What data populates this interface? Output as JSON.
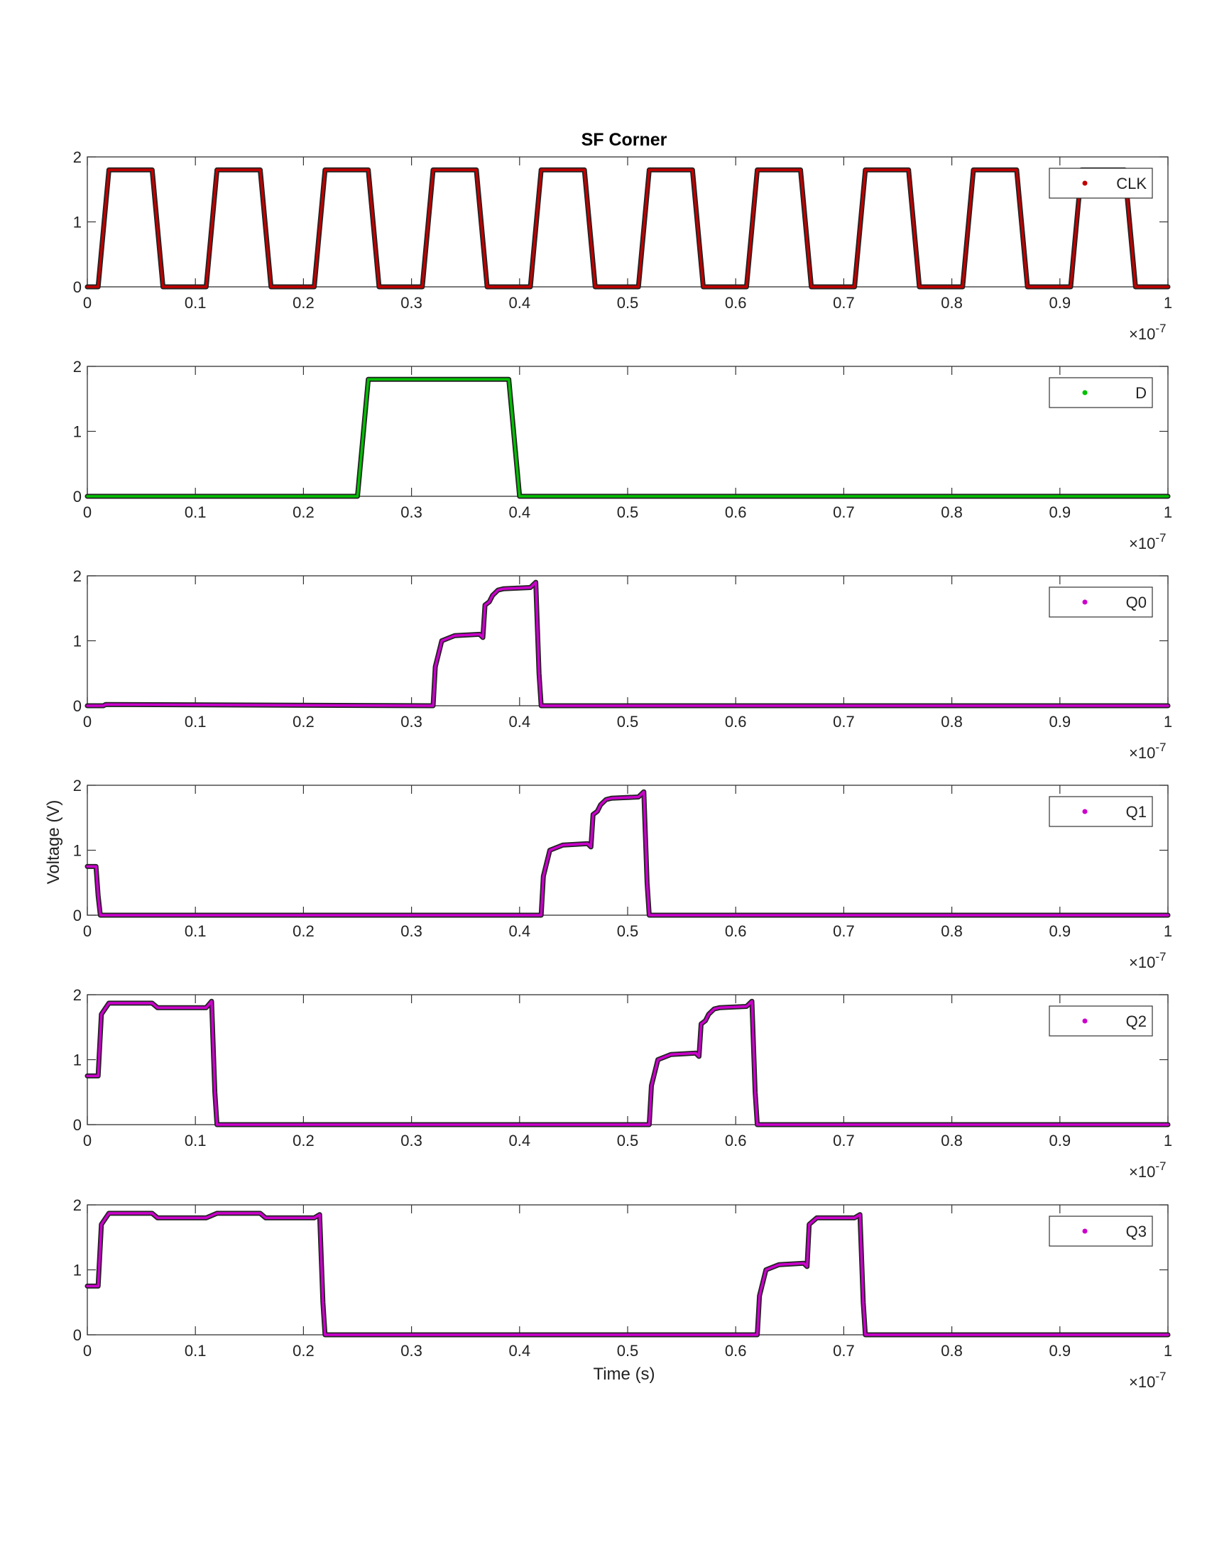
{
  "figure": {
    "title": "SF Corner",
    "ylabel": "Voltage (V)",
    "xlabel": "Time (s)",
    "exponent_base": "×10",
    "exponent_power": "-7"
  },
  "chart_data": [
    {
      "type": "line",
      "title": "SF Corner",
      "xlim": [
        0,
        1
      ],
      "ylim": [
        0,
        2
      ],
      "xticks": [
        "0",
        "0.1",
        "0.2",
        "0.3",
        "0.4",
        "0.5",
        "0.6",
        "0.7",
        "0.8",
        "0.9",
        "1"
      ],
      "yticks": [
        "0",
        "1",
        "2"
      ],
      "x_multiplier": "×10^-7",
      "legend": "top-right",
      "series": [
        {
          "name": "CLK",
          "color": "#c00000",
          "x": [
            0,
            0.01,
            0.02,
            0.06,
            0.07,
            0.11,
            0.12,
            0.16,
            0.17,
            0.21,
            0.22,
            0.26,
            0.27,
            0.31,
            0.32,
            0.36,
            0.37,
            0.41,
            0.42,
            0.46,
            0.47,
            0.51,
            0.52,
            0.56,
            0.57,
            0.61,
            0.62,
            0.66,
            0.67,
            0.71,
            0.72,
            0.76,
            0.77,
            0.81,
            0.82,
            0.86,
            0.87,
            0.91,
            0.92,
            0.96,
            0.97,
            1.0
          ],
          "y": [
            0,
            0,
            1.8,
            1.8,
            0,
            0,
            1.8,
            1.8,
            0,
            0,
            1.8,
            1.8,
            0,
            0,
            1.8,
            1.8,
            0,
            0,
            1.8,
            1.8,
            0,
            0,
            1.8,
            1.8,
            0,
            0,
            1.8,
            1.8,
            0,
            0,
            1.8,
            1.8,
            0,
            0,
            1.8,
            1.8,
            0,
            0,
            1.8,
            1.8,
            0,
            0
          ]
        }
      ]
    },
    {
      "type": "line",
      "xlim": [
        0,
        1
      ],
      "ylim": [
        0,
        2
      ],
      "xticks": [
        "0",
        "0.1",
        "0.2",
        "0.3",
        "0.4",
        "0.5",
        "0.6",
        "0.7",
        "0.8",
        "0.9",
        "1"
      ],
      "yticks": [
        "0",
        "1",
        "2"
      ],
      "x_multiplier": "×10^-7",
      "legend": "top-right",
      "series": [
        {
          "name": "D",
          "color": "#00c000",
          "x": [
            0,
            0.25,
            0.26,
            0.39,
            0.4,
            1.0
          ],
          "y": [
            0,
            0,
            1.8,
            1.8,
            0,
            0
          ]
        }
      ]
    },
    {
      "type": "line",
      "xlim": [
        0,
        1
      ],
      "ylim": [
        0,
        2
      ],
      "xticks": [
        "0",
        "0.1",
        "0.2",
        "0.3",
        "0.4",
        "0.5",
        "0.6",
        "0.7",
        "0.8",
        "0.9",
        "1"
      ],
      "yticks": [
        "0",
        "1",
        "2"
      ],
      "x_multiplier": "×10^-7",
      "legend": "top-right",
      "series": [
        {
          "name": "Q0",
          "color": "#cc00cc",
          "x": [
            0,
            0.015,
            0.017,
            0.32,
            0.322,
            0.328,
            0.34,
            0.363,
            0.366,
            0.368,
            0.372,
            0.375,
            0.38,
            0.385,
            0.41,
            0.415,
            0.418,
            0.42,
            1.0
          ],
          "y": [
            0,
            0,
            0.02,
            0,
            0.6,
            1.0,
            1.08,
            1.1,
            1.05,
            1.55,
            1.6,
            1.7,
            1.78,
            1.8,
            1.82,
            1.9,
            0.5,
            0,
            0
          ]
        }
      ]
    },
    {
      "type": "line",
      "xlim": [
        0,
        1
      ],
      "ylim": [
        0,
        2
      ],
      "xticks": [
        "0",
        "0.1",
        "0.2",
        "0.3",
        "0.4",
        "0.5",
        "0.6",
        "0.7",
        "0.8",
        "0.9",
        "1"
      ],
      "yticks": [
        "0",
        "1",
        "2"
      ],
      "x_multiplier": "×10^-7",
      "legend": "top-right",
      "series": [
        {
          "name": "Q1",
          "color": "#cc00cc",
          "x": [
            0,
            0.008,
            0.01,
            0.012,
            0.42,
            0.422,
            0.428,
            0.44,
            0.463,
            0.466,
            0.468,
            0.472,
            0.475,
            0.48,
            0.485,
            0.51,
            0.515,
            0.518,
            0.52,
            1.0
          ],
          "y": [
            0.75,
            0.75,
            0.3,
            0,
            0,
            0.6,
            1.0,
            1.08,
            1.1,
            1.05,
            1.55,
            1.6,
            1.7,
            1.78,
            1.8,
            1.82,
            1.9,
            0.5,
            0,
            0
          ]
        }
      ]
    },
    {
      "type": "line",
      "xlim": [
        0,
        1
      ],
      "ylim": [
        0,
        2
      ],
      "xticks": [
        "0",
        "0.1",
        "0.2",
        "0.3",
        "0.4",
        "0.5",
        "0.6",
        "0.7",
        "0.8",
        "0.9",
        "1"
      ],
      "yticks": [
        "0",
        "1",
        "2"
      ],
      "x_multiplier": "×10^-7",
      "legend": "top-right",
      "series": [
        {
          "name": "Q2",
          "color": "#cc00cc",
          "x": [
            0,
            0.01,
            0.013,
            0.02,
            0.06,
            0.065,
            0.07,
            0.11,
            0.115,
            0.118,
            0.12,
            0.52,
            0.522,
            0.528,
            0.54,
            0.563,
            0.566,
            0.568,
            0.572,
            0.575,
            0.58,
            0.585,
            0.61,
            0.615,
            0.618,
            0.62,
            1.0
          ],
          "y": [
            0.75,
            0.75,
            1.7,
            1.87,
            1.87,
            1.8,
            1.8,
            1.8,
            1.9,
            0.5,
            0,
            0,
            0.6,
            1.0,
            1.08,
            1.1,
            1.05,
            1.55,
            1.6,
            1.7,
            1.78,
            1.8,
            1.82,
            1.9,
            0.5,
            0,
            0
          ]
        }
      ]
    },
    {
      "type": "line",
      "xlim": [
        0,
        1
      ],
      "ylim": [
        0,
        2
      ],
      "xticks": [
        "0",
        "0.1",
        "0.2",
        "0.3",
        "0.4",
        "0.5",
        "0.6",
        "0.7",
        "0.8",
        "0.9",
        "1"
      ],
      "yticks": [
        "0",
        "1",
        "2"
      ],
      "x_multiplier": "×10^-7",
      "legend": "top-right",
      "series": [
        {
          "name": "Q3",
          "color": "#cc00cc",
          "x": [
            0,
            0.01,
            0.013,
            0.02,
            0.06,
            0.065,
            0.11,
            0.12,
            0.16,
            0.165,
            0.17,
            0.21,
            0.215,
            0.218,
            0.22,
            0.62,
            0.622,
            0.628,
            0.64,
            0.663,
            0.666,
            0.668,
            0.675,
            0.71,
            0.715,
            0.718,
            0.72,
            1.0
          ],
          "y": [
            0.75,
            0.75,
            1.7,
            1.87,
            1.87,
            1.8,
            1.8,
            1.87,
            1.87,
            1.8,
            1.8,
            1.8,
            1.85,
            0.5,
            0,
            0,
            0.6,
            1.0,
            1.08,
            1.1,
            1.05,
            1.7,
            1.8,
            1.8,
            1.85,
            0.5,
            0,
            0
          ]
        }
      ]
    }
  ]
}
